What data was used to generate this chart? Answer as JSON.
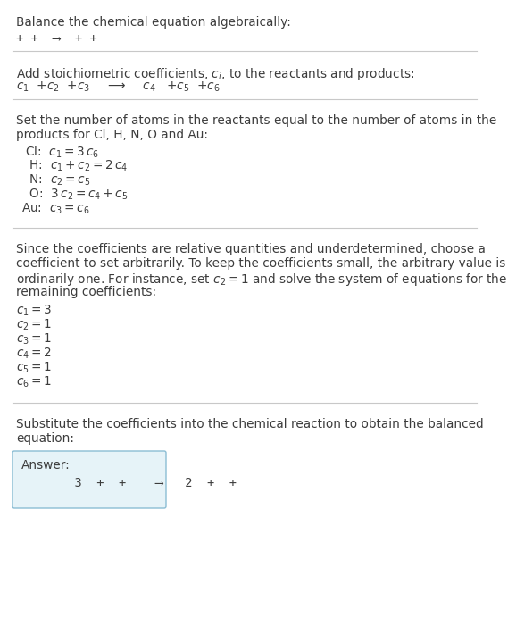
{
  "title": "Balance the chemical equation algebraically:",
  "section1_eq": "+ +  ⟶  + +",
  "section2_header": "Add stoichiometric coefficients, $c_i$, to the reactants and products:",
  "section2_eq_parts": [
    "$c_1$  +$c_2$  +$c_3$    ⟶    $c_4$   +$c_5$  +$c_6$"
  ],
  "section3_header_line1": "Set the number of atoms in the reactants equal to the number of atoms in the",
  "section3_header_line2": "products for Cl, H, N, O and Au:",
  "section3_equations": [
    " Cl:  $c_1 = 3\\,c_6$",
    "  H:  $c_1 + c_2 = 2\\,c_4$",
    "  N:  $c_2 = c_5$",
    "  O:  $3\\,c_2 = c_4 + c_5$",
    "Au:  $c_3 = c_6$"
  ],
  "section4_text_lines": [
    "Since the coefficients are relative quantities and underdetermined, choose a",
    "coefficient to set arbitrarily. To keep the coefficients small, the arbitrary value is",
    "ordinarily one. For instance, set $c_2 = 1$ and solve the system of equations for the",
    "remaining coefficients:"
  ],
  "section4_values": [
    "$c_1 = 3$",
    "$c_2 = 1$",
    "$c_3 = 1$",
    "$c_4 = 2$",
    "$c_5 = 1$",
    "$c_6 = 1$"
  ],
  "section5_text_lines": [
    "Substitute the coefficients into the chemical reaction to obtain the balanced",
    "equation:"
  ],
  "answer_label": "Answer:",
  "answer_eq": "      3  +  +    ⟶   2  +  +",
  "bg_color": "#ffffff",
  "text_color": "#3c3c3c",
  "line_color": "#c8c8c8",
  "answer_box_color": "#e6f3f8",
  "answer_box_border": "#8bbdd4"
}
